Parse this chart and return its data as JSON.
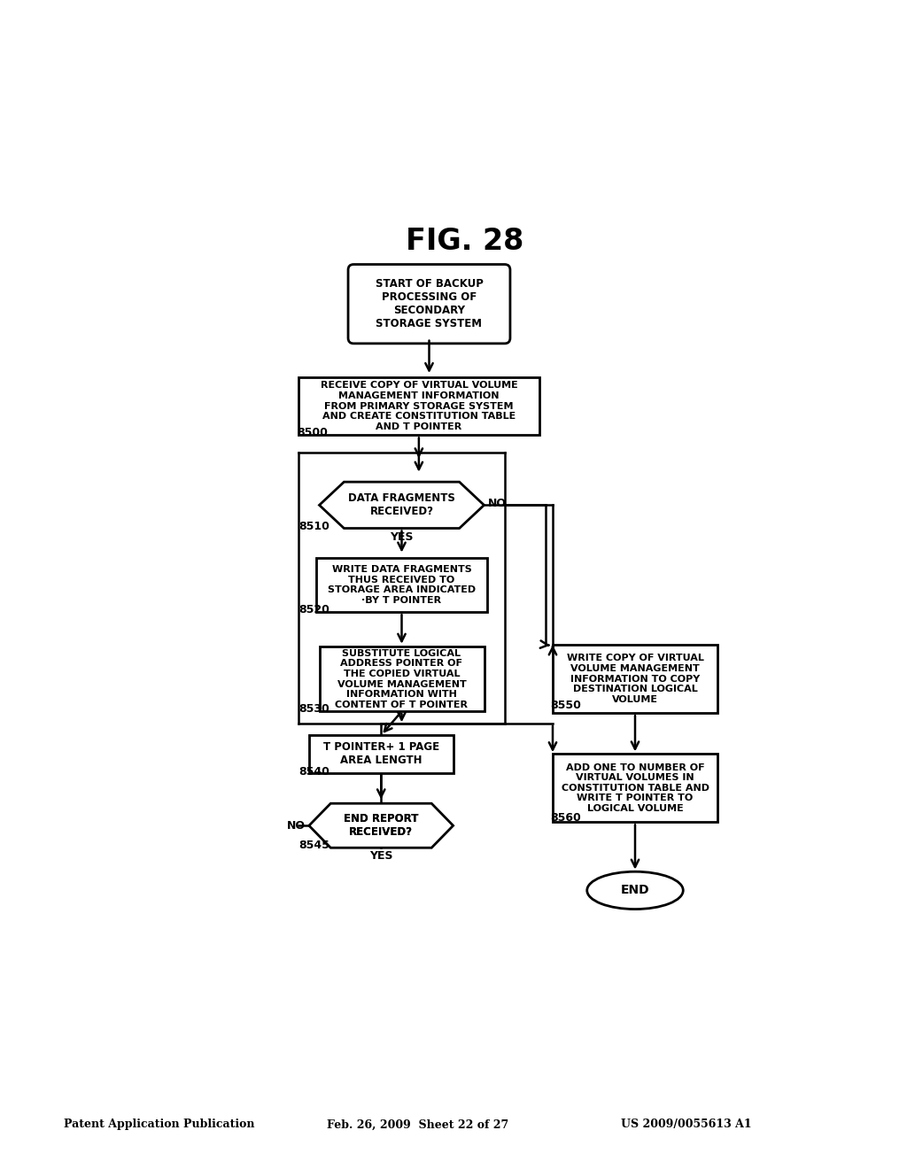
{
  "title": "FIG. 28",
  "header_left": "Patent Application Publication",
  "header_mid": "Feb. 26, 2009  Sheet 22 of 27",
  "header_right": "US 2009/0055613 A1",
  "bg_color": "#ffffff",
  "text_start": "START OF BACKUP\nPROCESSING OF\nSECONDARY\nSTORAGE SYSTEM",
  "text_8500": "RECEIVE COPY OF VIRTUAL VOLUME\nMANAGEMENT INFORMATION\nFROM PRIMARY STORAGE SYSTEM\nAND CREATE CONSTITUTION TABLE\nAND T POINTER",
  "text_8510": "DATA FRAGMENTS\nRECEIVED?",
  "text_8520": "WRITE DATA FRAGMENTS\nTHUS RECEIVED TO\nSTORAGE AREA INDICATED\n·BY T POINTER",
  "text_8530": "SUBSTITUTE LOGICAL\nADDRESS POINTER OF\nTHE COPIED VIRTUAL\nVOLUME MANAGEMENT\nINFORMATION WITH\nCONTENT OF T POINTER",
  "text_8540": "T POINTER+ 1 PAGE\nAREA LENGTH",
  "text_8545": "END REPORT\nRECEIVED?",
  "text_8550": "WRITE COPY OF VIRTUAL\nVOLUME MANAGEMENT\nINFORMATION TO COPY\nDESTINATION LOGICAL\nVOLUME",
  "text_8560": "ADD ONE TO NUMBER OF\nVIRTUAL VOLUMES IN\nCONSTITUTION TABLE AND\nWRITE T POINTER TO\nLOGICAL VOLUME",
  "text_end": "END"
}
